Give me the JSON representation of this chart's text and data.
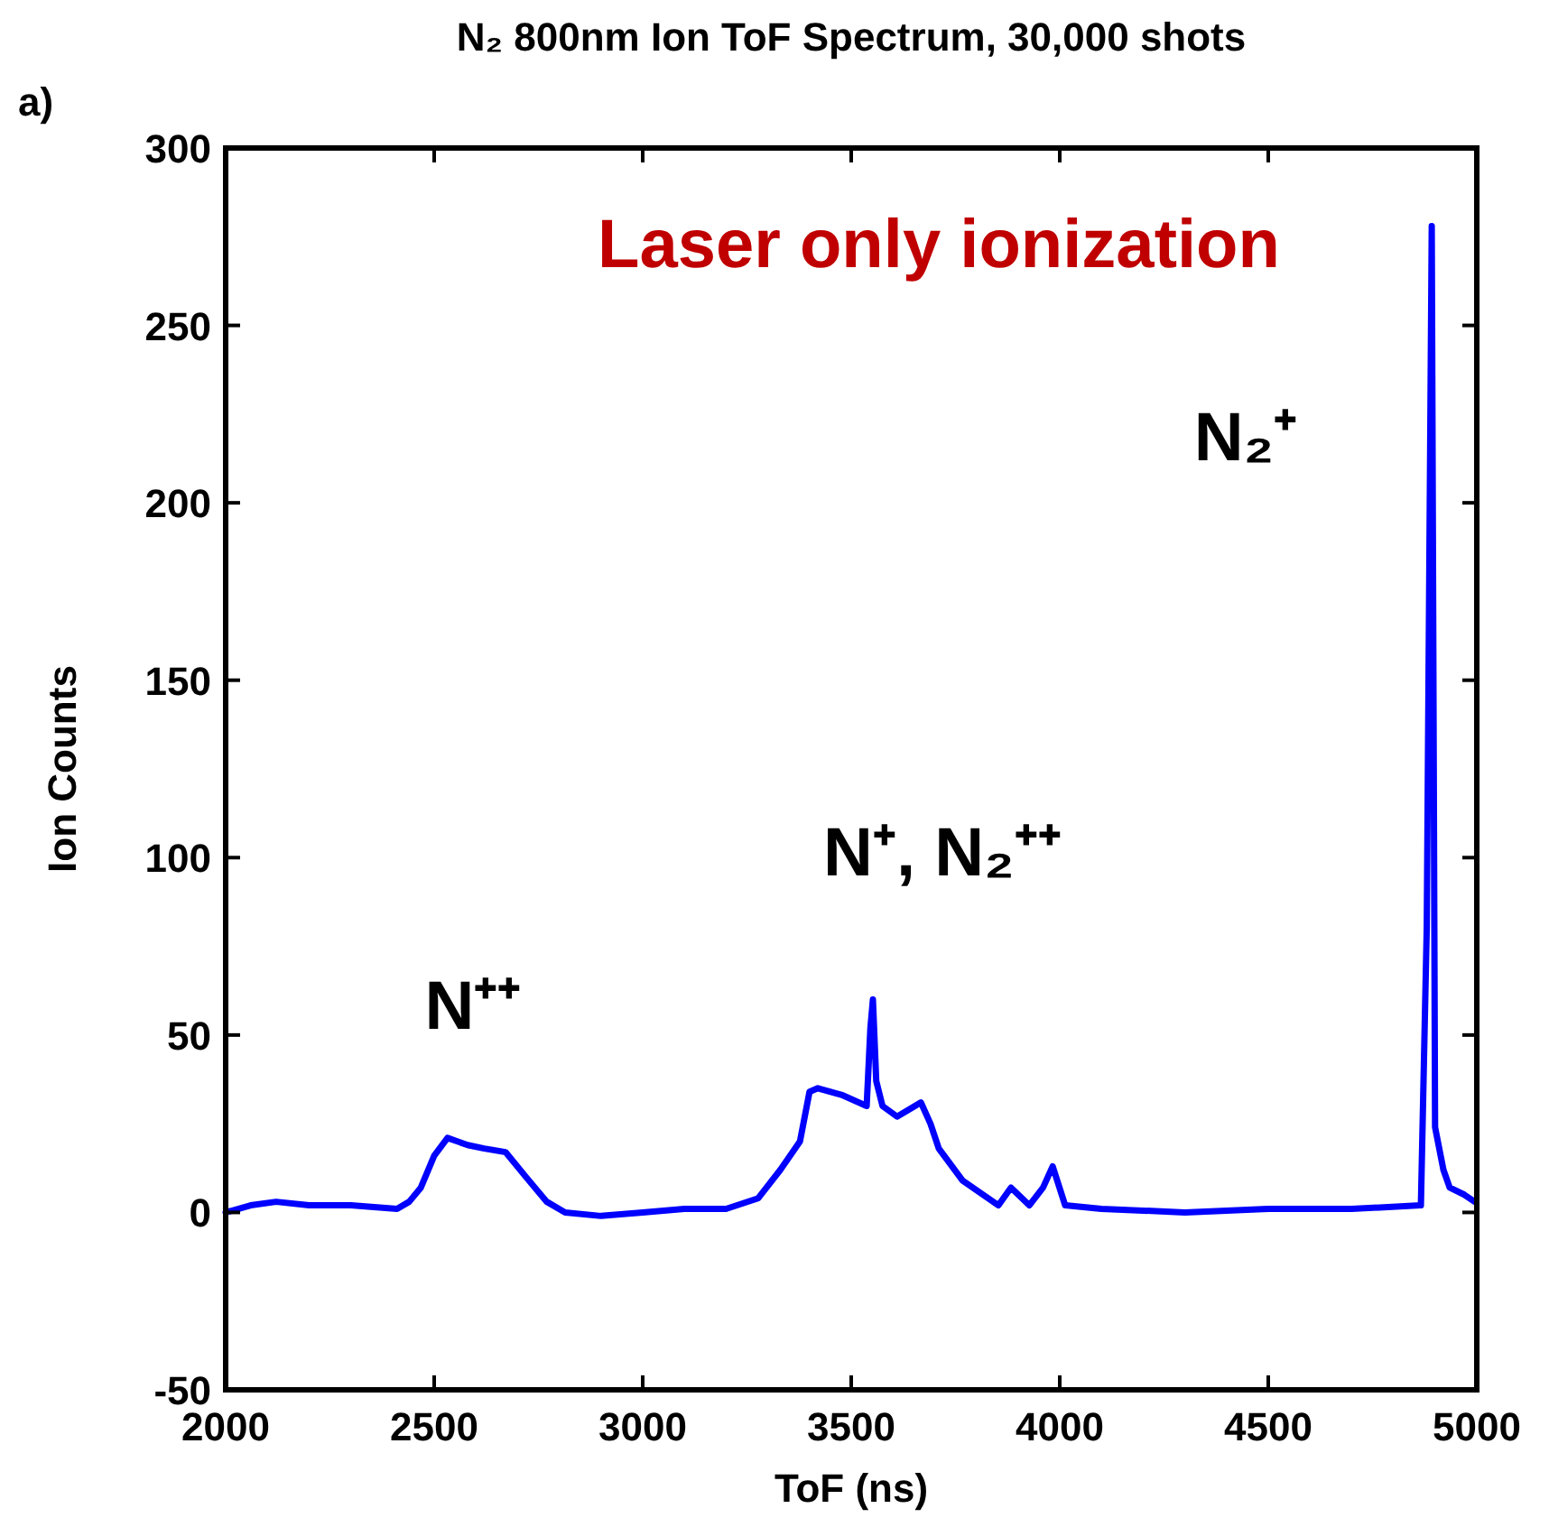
{
  "chart_data": {
    "type": "line",
    "title": "N₂ 800nm Ion ToF Spectrum, 30,000 shots",
    "xlabel": "ToF (ns)",
    "ylabel": "Ion Counts",
    "annotations": [
      "a)",
      "Laser only ionization",
      "N⁺⁺",
      "N⁺, N₂⁺⁺",
      "N₂⁺"
    ],
    "xlim": [
      2000,
      5000
    ],
    "xticks": [
      2000,
      2500,
      3000,
      3500,
      4000,
      4500,
      5000
    ],
    "ylim": [
      -50,
      300
    ],
    "yticks": [
      -50,
      0,
      50,
      100,
      150,
      200,
      250,
      300
    ],
    "grid": false,
    "marker": "none",
    "line_style": "solid",
    "series": [
      {
        "color": "#0000ff",
        "x": [
          2000,
          2060,
          2121,
          2200,
          2300,
          2411,
          2440,
          2468,
          2500,
          2532,
          2580,
          2620,
          2671,
          2720,
          2770,
          2814,
          2900,
          3000,
          3100,
          3200,
          3277,
          3330,
          3377,
          3400,
          3420,
          3480,
          3537,
          3546,
          3552,
          3560,
          3575,
          3610,
          3667,
          3690,
          3710,
          3767,
          3853,
          3883,
          3927,
          3960,
          3983,
          4013,
          4100,
          4300,
          4500,
          4700,
          4866,
          4880,
          4892,
          4897,
          4900,
          4920,
          4935,
          4970,
          4995
        ],
        "values": [
          0,
          2,
          3,
          2,
          2,
          1,
          3,
          7,
          16,
          21,
          19,
          18,
          17,
          10,
          3,
          0,
          -1,
          0,
          1,
          1,
          4,
          12,
          20,
          34,
          35,
          33,
          30,
          52,
          60,
          37,
          30,
          27,
          31,
          25,
          18,
          9,
          2,
          7,
          2,
          7,
          13,
          2,
          1,
          0,
          1,
          1,
          2,
          80,
          278,
          120,
          24,
          12,
          7,
          5,
          3
        ]
      }
    ]
  }
}
